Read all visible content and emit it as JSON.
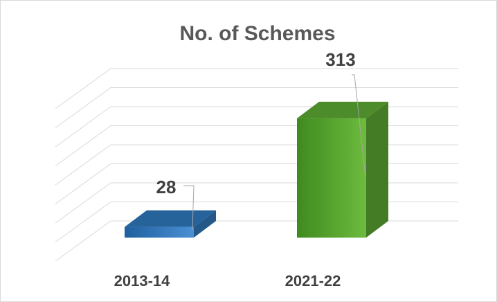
{
  "chart_data": {
    "type": "bar3d",
    "title": "No. of Schemes",
    "categories": [
      "2013-14",
      "2021-22"
    ],
    "values": [
      28,
      313
    ],
    "colors": [
      "#2e75b6",
      "#5aa531"
    ],
    "ylim": [
      0,
      400
    ],
    "yticks": [
      0,
      50,
      100,
      150,
      200,
      250,
      300,
      350,
      400
    ],
    "grid": true
  }
}
